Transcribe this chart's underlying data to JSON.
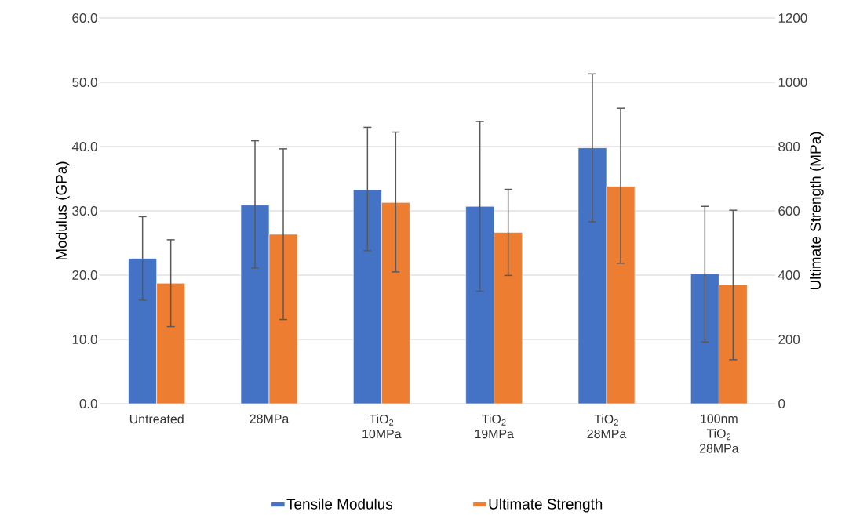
{
  "chart_data": {
    "type": "bar",
    "ylabel": "Modulus (GPa)",
    "y2label": "Ultimate Strength (MPa)",
    "categories": [
      "Untreated",
      "28MPa",
      "TiO$_{2}$ 10MPa",
      "TiO$_{2}$ 19MPa",
      "TiO$_{2}$ 28MPa",
      "100nm TiO$_{2}$ 28MPa"
    ],
    "series": [
      {
        "name": "Tensile Modulus",
        "color": "#4472c4",
        "values": [
          22.6,
          30.9,
          33.3,
          30.7,
          39.8,
          20.2
        ],
        "errors": [
          [
            16.1,
            29.1
          ],
          [
            21.1,
            40.9
          ],
          [
            23.8,
            43.0
          ],
          [
            17.5,
            43.9
          ],
          [
            28.3,
            51.3
          ],
          [
            9.6,
            30.7
          ]
        ]
      },
      {
        "name": "Ultimate Strength",
        "color": "#ed7d31",
        "axis": "y2",
        "values": [
          375,
          527,
          626,
          533,
          676,
          370
        ],
        "errors": [
          [
            240,
            510
          ],
          [
            262,
            793
          ],
          [
            410,
            845
          ],
          [
            399,
            667
          ],
          [
            437,
            919
          ],
          [
            137,
            602
          ]
        ]
      }
    ],
    "ylim": [
      0,
      60
    ],
    "yticks": [
      {
        "value": 0,
        "label": "0.0"
      },
      {
        "value": 10,
        "label": "10.0"
      },
      {
        "value": 20,
        "label": "20.0"
      },
      {
        "value": 30,
        "label": "30.0"
      },
      {
        "value": 40,
        "label": "40.0"
      },
      {
        "value": 50,
        "label": "50.0"
      },
      {
        "value": 60,
        "label": "60.0"
      }
    ],
    "y2lim": [
      0,
      1200
    ],
    "y2ticks": [
      0,
      200,
      400,
      600,
      800,
      1000,
      1200
    ],
    "grid": "y",
    "legend": "bottom"
  }
}
